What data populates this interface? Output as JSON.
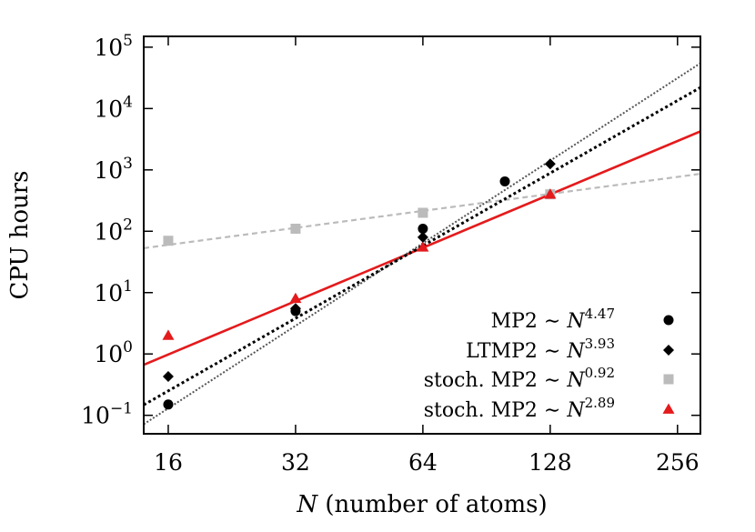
{
  "chart_data": {
    "type": "scatter",
    "xlabel_var": "N",
    "xlabel_rest": " (number of atoms)",
    "ylabel": "CPU hours",
    "x_scale": "log2",
    "y_scale": "log10",
    "xlim": [
      14.0,
      290.0
    ],
    "ylim": [
      0.05,
      150000
    ],
    "x_ticks": [
      16,
      32,
      64,
      128,
      256
    ],
    "x_tick_labels": [
      "16",
      "32",
      "64",
      "128",
      "256"
    ],
    "y_ticks": [
      0.1,
      1,
      10,
      100,
      1000,
      10000,
      100000
    ],
    "y_tick_base": [
      "10",
      "10",
      "10",
      "10",
      "10",
      "10",
      "10"
    ],
    "y_tick_exp": [
      "−1",
      "0",
      "1",
      "2",
      "3",
      "4",
      "5"
    ],
    "grid": false,
    "legend_position": "bottom-right",
    "series": [
      {
        "name": "MP2 ∼ N^4.47",
        "legend_prefix": "MP2 ∼ ",
        "legend_var": "N",
        "legend_exp": "4.47",
        "marker": "circle",
        "color": "#000000",
        "points": [
          [
            16,
            0.15
          ],
          [
            32,
            5.0
          ],
          [
            64,
            110
          ],
          [
            100,
            650
          ]
        ],
        "fit": {
          "slope": 4.47,
          "x0": 16,
          "y0": 0.13,
          "style": "dotted-gray",
          "color": "#555555"
        }
      },
      {
        "name": "LTMP2 ∼ N^3.93",
        "legend_prefix": "LTMP2 ∼ ",
        "legend_var": "N",
        "legend_exp": "3.93",
        "marker": "diamond",
        "color": "#000000",
        "points": [
          [
            16,
            0.43
          ],
          [
            32,
            5.5
          ],
          [
            64,
            80
          ],
          [
            128,
            1250
          ]
        ],
        "fit": {
          "slope": 3.93,
          "x0": 16,
          "y0": 0.25,
          "style": "dotted-bold",
          "color": "#000000"
        }
      },
      {
        "name": "stoch. MP2 ∼ N^0.92",
        "legend_prefix": "stoch. MP2 ∼ ",
        "legend_var": "N",
        "legend_exp": "0.92",
        "marker": "square",
        "color": "#bbbbbb",
        "points": [
          [
            16,
            70
          ],
          [
            32,
            110
          ],
          [
            64,
            200
          ],
          [
            128,
            400
          ]
        ],
        "fit": {
          "slope": 0.92,
          "x0": 16,
          "y0": 60,
          "style": "dashed",
          "color": "#bbbbbb"
        }
      },
      {
        "name": "stoch. MP2 ∼ N^2.89",
        "legend_prefix": "stoch. MP2 ∼ ",
        "legend_var": "N",
        "legend_exp": "2.89",
        "marker": "triangle",
        "color": "#e41a1c",
        "points": [
          [
            16,
            2.0
          ],
          [
            32,
            8.0
          ],
          [
            64,
            55
          ],
          [
            128,
            400
          ]
        ],
        "fit": {
          "slope": 2.89,
          "x0": 16,
          "y0": 0.98,
          "style": "solid",
          "color": "#e41a1c"
        }
      }
    ]
  }
}
